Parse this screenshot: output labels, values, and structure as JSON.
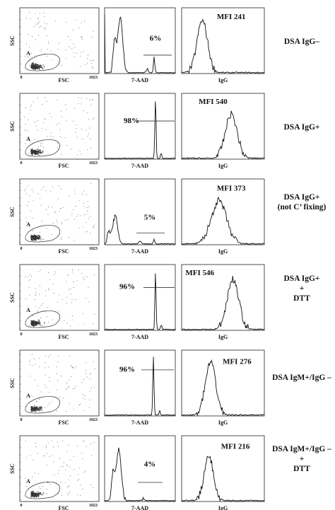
{
  "figure": {
    "panel_labels": {
      "scatter_y": "SSC",
      "scatter_x": "FSC",
      "scatter_x_max": "1023",
      "scatter_x_min": "0",
      "gate": "A",
      "hist2_x": "7-AAD",
      "hist3_x": "IgG"
    }
  },
  "chart_data": [
    {
      "row": 1,
      "type": "histogram",
      "condition": [
        "DSA IgG–"
      ],
      "x_labels": [
        "7-AAD",
        "IgG"
      ],
      "percent_7aad": "6%",
      "mfi_igg": "MFI 241"
    },
    {
      "row": 2,
      "type": "histogram",
      "condition": [
        "DSA IgG+"
      ],
      "x_labels": [
        "7-AAD",
        "IgG"
      ],
      "percent_7aad": "98%",
      "mfi_igg": "MFI 540"
    },
    {
      "row": 3,
      "type": "histogram",
      "condition": [
        "DSA IgG+",
        "(not C’ fixing)"
      ],
      "x_labels": [
        "7-AAD",
        "IgG"
      ],
      "percent_7aad": "5%",
      "mfi_igg": "MFI 373"
    },
    {
      "row": 4,
      "type": "histogram",
      "condition": [
        "DSA IgG+",
        "+",
        "DTT"
      ],
      "x_labels": [
        "7-AAD",
        "IgG"
      ],
      "percent_7aad": "96%",
      "mfi_igg": "MFI 546"
    },
    {
      "row": 5,
      "type": "histogram",
      "condition": [
        "DSA IgM+/IgG –"
      ],
      "x_labels": [
        "7-AAD",
        "IgG"
      ],
      "percent_7aad": "96%",
      "mfi_igg": "MFI 276"
    },
    {
      "row": 6,
      "type": "histogram",
      "condition": [
        "DSA IgM+/IgG –",
        "+",
        "DTT"
      ],
      "x_labels": [
        "7-AAD",
        "IgG"
      ],
      "percent_7aad": "4%",
      "mfi_igg": "MFI 216"
    }
  ]
}
